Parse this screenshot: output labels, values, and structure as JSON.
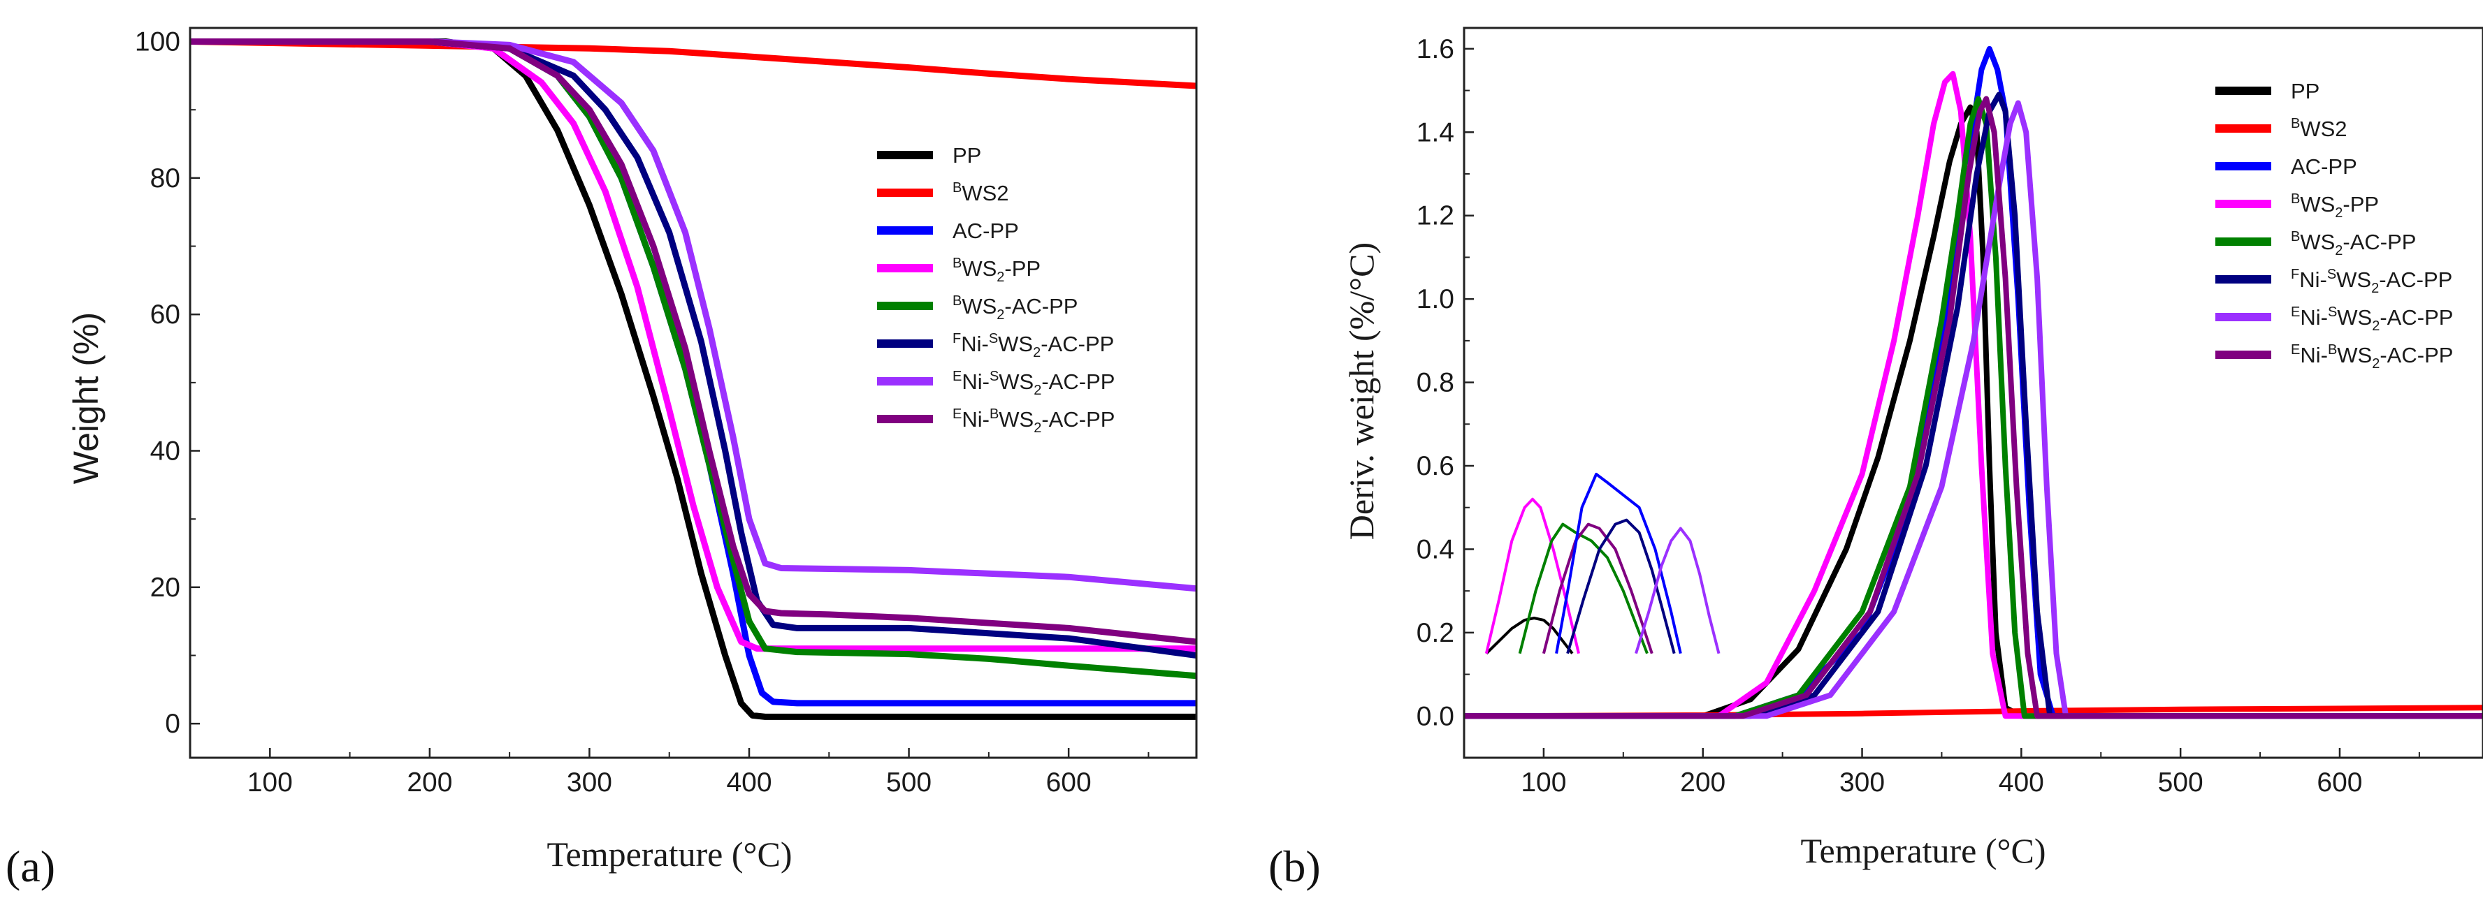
{
  "chart_data": [
    {
      "type": "line",
      "panel_label": "(a)",
      "title": "",
      "xlabel": "Temperature (°C)",
      "ylabel": "Weight (%)",
      "xlim": [
        50,
        680
      ],
      "ylim": [
        -5,
        102
      ],
      "xticks": [
        100,
        200,
        300,
        400,
        500,
        600
      ],
      "yticks": [
        0,
        20,
        40,
        60,
        80,
        100
      ],
      "legend_position": "center-right",
      "series": [
        {
          "name": "PP",
          "color": "#000000",
          "x": [
            50,
            150,
            210,
            240,
            260,
            280,
            300,
            320,
            340,
            355,
            370,
            385,
            395,
            402,
            410,
            430,
            680
          ],
          "y": [
            100,
            100,
            100,
            99,
            95,
            87,
            76,
            63,
            48,
            36,
            22,
            10,
            3,
            1.2,
            1,
            1,
            1
          ]
        },
        {
          "name": "BWS2",
          "sup": "B",
          "base": "WS2",
          "sub": "",
          "color": "#ff0000",
          "x": [
            50,
            300,
            350,
            400,
            450,
            500,
            550,
            600,
            680
          ],
          "y": [
            100,
            99,
            98.6,
            97.8,
            97,
            96.2,
            95.3,
            94.5,
            93.5
          ]
        },
        {
          "name": "AC-PP",
          "color": "#0000ff",
          "x": [
            50,
            200,
            250,
            280,
            300,
            320,
            340,
            360,
            375,
            390,
            400,
            408,
            415,
            430,
            680
          ],
          "y": [
            100,
            100,
            99,
            95,
            89,
            80,
            67,
            52,
            38,
            22,
            10,
            4.5,
            3.2,
            3,
            3
          ]
        },
        {
          "name": "BWS2-PP",
          "sup": "B",
          "base": "WS",
          "sub": "2",
          "suffix": "-PP",
          "color": "#ff00ff",
          "x": [
            50,
            200,
            240,
            270,
            290,
            310,
            330,
            350,
            365,
            380,
            395,
            405,
            420,
            500,
            680
          ],
          "y": [
            100,
            100,
            99,
            94,
            88,
            78,
            64,
            46,
            32,
            20,
            12,
            11,
            11,
            11,
            11
          ]
        },
        {
          "name": "BWS2-AC-PP",
          "sup": "B",
          "base": "WS",
          "sub": "2",
          "suffix": "-AC-PP",
          "color": "#008000",
          "x": [
            50,
            200,
            250,
            280,
            300,
            320,
            340,
            360,
            375,
            390,
            400,
            410,
            430,
            500,
            550,
            600,
            680
          ],
          "y": [
            100,
            100,
            99,
            95,
            89,
            80,
            67,
            52,
            38,
            24,
            15,
            11,
            10.5,
            10.2,
            9.5,
            8.5,
            7
          ]
        },
        {
          "name": "FNi-SWS2-AC-PP",
          "sup": "F",
          "base": "Ni-",
          "sup2": "S",
          "base2": "WS",
          "sub": "2",
          "suffix": "-AC-PP",
          "color": "#000080",
          "x": [
            50,
            200,
            250,
            290,
            310,
            330,
            350,
            370,
            385,
            395,
            405,
            415,
            430,
            500,
            600,
            680
          ],
          "y": [
            100,
            100,
            99,
            95,
            90,
            83,
            72,
            56,
            40,
            28,
            18,
            14.5,
            14,
            14,
            12.5,
            10
          ]
        },
        {
          "name": "ENi-SWS2-AC-PP",
          "sup": "E",
          "base": "Ni-",
          "sup2": "S",
          "base2": "WS",
          "sub": "2",
          "suffix": "-AC-PP",
          "color": "#9b30ff",
          "x": [
            50,
            200,
            250,
            290,
            320,
            340,
            360,
            375,
            390,
            400,
            410,
            420,
            450,
            500,
            600,
            680
          ],
          "y": [
            100,
            100,
            99.5,
            97,
            91,
            84,
            72,
            58,
            42,
            30,
            23.5,
            22.8,
            22.7,
            22.5,
            21.5,
            19.8
          ]
        },
        {
          "name": "ENi-BWS2-AC-PP",
          "sup": "E",
          "base": "Ni-",
          "sup2": "B",
          "base2": "WS",
          "sub": "2",
          "suffix": "-AC-PP",
          "color": "#800080",
          "x": [
            50,
            200,
            250,
            280,
            300,
            320,
            340,
            360,
            375,
            390,
            400,
            410,
            420,
            450,
            500,
            600,
            680
          ],
          "y": [
            100,
            100,
            99,
            95,
            90,
            82,
            70,
            55,
            40,
            26,
            19,
            16.5,
            16.2,
            16,
            15.5,
            14,
            12
          ]
        }
      ]
    },
    {
      "type": "line",
      "panel_label": "(b)",
      "title": "",
      "xlabel": "Temperature (°C)",
      "ylabel": "Deriv. weight (%/°C)",
      "xlim": [
        50,
        690
      ],
      "ylim": [
        -0.1,
        1.65
      ],
      "xticks": [
        100,
        200,
        300,
        400,
        500,
        600
      ],
      "yticks": [
        0.0,
        0.2,
        0.4,
        0.6,
        0.8,
        1.0,
        1.2,
        1.4,
        1.6
      ],
      "legend_position": "top-right",
      "series": [
        {
          "name": "PP",
          "color": "#000000",
          "x": [
            50,
            200,
            230,
            260,
            290,
            310,
            330,
            345,
            355,
            362,
            368,
            372,
            376,
            380,
            384,
            390,
            400,
            690
          ],
          "y": [
            0,
            0,
            0.04,
            0.16,
            0.4,
            0.62,
            0.9,
            1.15,
            1.33,
            1.42,
            1.46,
            1.4,
            1.1,
            0.6,
            0.2,
            0.02,
            0,
            0
          ]
        },
        {
          "name": "BWS2",
          "sup": "B",
          "base": "WS2",
          "sub": "",
          "color": "#ff0000",
          "x": [
            50,
            200,
            300,
            400,
            500,
            600,
            690
          ],
          "y": [
            0,
            0.002,
            0.006,
            0.012,
            0.016,
            0.018,
            0.02
          ]
        },
        {
          "name": "AC-PP",
          "color": "#0000ff",
          "x": [
            50,
            220,
            260,
            300,
            330,
            350,
            365,
            375,
            380,
            385,
            390,
            398,
            405,
            412,
            420,
            690
          ],
          "y": [
            0,
            0,
            0.05,
            0.2,
            0.5,
            0.9,
            1.3,
            1.55,
            1.6,
            1.55,
            1.45,
            1.0,
            0.5,
            0.1,
            0,
            0
          ]
        },
        {
          "name": "BWS2-PP",
          "sup": "B",
          "base": "WS",
          "sub": "2",
          "suffix": "-PP",
          "color": "#ff00ff",
          "x": [
            50,
            210,
            240,
            270,
            300,
            320,
            335,
            345,
            352,
            357,
            362,
            368,
            375,
            382,
            390,
            690
          ],
          "y": [
            0,
            0,
            0.08,
            0.3,
            0.58,
            0.9,
            1.2,
            1.42,
            1.52,
            1.54,
            1.45,
            1.15,
            0.6,
            0.15,
            0,
            0
          ]
        },
        {
          "name": "BWS2-AC-PP",
          "sup": "B",
          "base": "WS",
          "sub": "2",
          "suffix": "-AC-PP",
          "color": "#008000",
          "x": [
            50,
            220,
            260,
            300,
            330,
            350,
            360,
            368,
            373,
            378,
            384,
            390,
            396,
            402,
            690
          ],
          "y": [
            0,
            0,
            0.05,
            0.25,
            0.55,
            0.95,
            1.2,
            1.42,
            1.48,
            1.42,
            1.1,
            0.6,
            0.2,
            0,
            0
          ]
        },
        {
          "name": "FNi-SWS2-AC-PP",
          "sup": "F",
          "base": "Ni-",
          "sup2": "S",
          "base2": "WS",
          "sub": "2",
          "suffix": "-AC-PP",
          "color": "#000080",
          "x": [
            50,
            230,
            270,
            310,
            340,
            360,
            372,
            380,
            386,
            390,
            396,
            403,
            410,
            418,
            690
          ],
          "y": [
            0,
            0,
            0.05,
            0.25,
            0.6,
            0.98,
            1.3,
            1.45,
            1.49,
            1.45,
            1.2,
            0.7,
            0.25,
            0,
            0
          ]
        },
        {
          "name": "ENi-SWS2-AC-PP",
          "sup": "E",
          "base": "Ni-",
          "sup2": "S",
          "base2": "WS",
          "sub": "2",
          "suffix": "-AC-PP",
          "color": "#9b30ff",
          "x": [
            50,
            240,
            280,
            320,
            350,
            370,
            385,
            393,
            398,
            403,
            410,
            416,
            422,
            428,
            690
          ],
          "y": [
            0,
            0,
            0.05,
            0.25,
            0.55,
            0.9,
            1.25,
            1.42,
            1.47,
            1.4,
            1.05,
            0.55,
            0.15,
            0,
            0
          ]
        },
        {
          "name": "ENi-BWS2-AC-PP",
          "sup": "E",
          "base": "Ni-",
          "sup2": "B",
          "base2": "WS",
          "sub": "2",
          "suffix": "-AC-PP",
          "color": "#800080",
          "x": [
            50,
            225,
            265,
            305,
            335,
            355,
            367,
            374,
            378,
            383,
            390,
            397,
            404,
            410,
            690
          ],
          "y": [
            0,
            0,
            0.05,
            0.25,
            0.58,
            0.95,
            1.3,
            1.45,
            1.48,
            1.4,
            1.05,
            0.55,
            0.15,
            0,
            0
          ]
        }
      ],
      "inset_peaks": [
        {
          "series": "PP",
          "color": "#000000",
          "x": [
            64,
            72,
            80,
            88,
            94,
            100,
            106,
            112,
            118
          ],
          "y": [
            0.15,
            0.18,
            0.21,
            0.23,
            0.235,
            0.23,
            0.21,
            0.18,
            0.15
          ]
        },
        {
          "series": "BWS2-PP",
          "color": "#ff00ff",
          "x": [
            64,
            72,
            80,
            88,
            93,
            98,
            106,
            114,
            122
          ],
          "y": [
            0.15,
            0.28,
            0.42,
            0.5,
            0.52,
            0.5,
            0.4,
            0.28,
            0.15
          ]
        },
        {
          "series": "BWS2-AC-PP",
          "color": "#008000",
          "x": [
            85,
            95,
            105,
            112,
            120,
            130,
            140,
            150,
            160,
            165
          ],
          "y": [
            0.15,
            0.3,
            0.42,
            0.46,
            0.44,
            0.42,
            0.38,
            0.3,
            0.2,
            0.15
          ]
        },
        {
          "series": "ENi-BWS2-AC-PP",
          "color": "#800080",
          "x": [
            100,
            110,
            120,
            128,
            135,
            145,
            155,
            162,
            168
          ],
          "y": [
            0.15,
            0.3,
            0.42,
            0.46,
            0.45,
            0.4,
            0.3,
            0.22,
            0.15
          ]
        },
        {
          "series": "AC-PP",
          "color": "#0000ff",
          "x": [
            108,
            116,
            124,
            133,
            140,
            150,
            160,
            170,
            180,
            186
          ],
          "y": [
            0.15,
            0.32,
            0.5,
            0.58,
            0.56,
            0.53,
            0.5,
            0.4,
            0.25,
            0.15
          ]
        },
        {
          "series": "FNi-SWS2-AC-PP",
          "color": "#000080",
          "x": [
            115,
            125,
            135,
            145,
            152,
            160,
            168,
            175,
            182
          ],
          "y": [
            0.15,
            0.28,
            0.4,
            0.46,
            0.47,
            0.44,
            0.35,
            0.25,
            0.15
          ]
        },
        {
          "series": "ENi-SWS2-AC-PP",
          "color": "#9b30ff",
          "x": [
            158,
            166,
            174,
            180,
            186,
            192,
            198,
            204,
            210
          ],
          "y": [
            0.15,
            0.25,
            0.36,
            0.42,
            0.45,
            0.42,
            0.34,
            0.24,
            0.15
          ]
        }
      ]
    }
  ]
}
